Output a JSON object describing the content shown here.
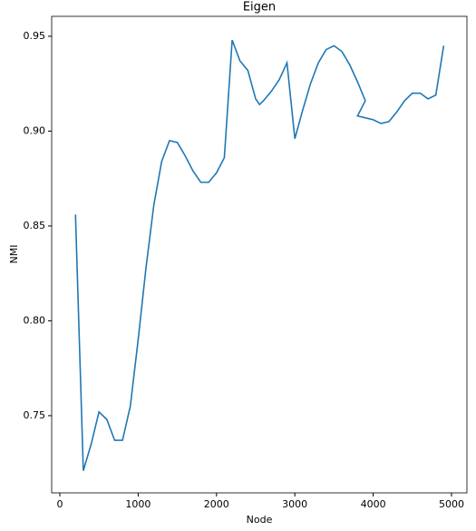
{
  "chart_data": {
    "type": "line",
    "title": "Eigen",
    "x_label": "Node",
    "y_label": "NMI",
    "x": [
      200,
      300,
      400,
      500,
      600,
      700,
      800,
      900,
      1000,
      1100,
      1200,
      1300,
      1400,
      1500,
      1600,
      1700,
      1800,
      1900,
      2000,
      2100,
      2200,
      2300,
      2400,
      2500,
      2550,
      2600,
      2700,
      2800,
      2900,
      3000,
      3100,
      3200,
      3300,
      3400,
      3500,
      3600,
      3700,
      3800,
      3900,
      3800,
      3900,
      4000,
      4100,
      4200,
      4300,
      4400,
      4500,
      4600,
      4700,
      4800,
      4900
    ],
    "series": [
      {
        "name": "NMI",
        "color": "#1f77b4",
        "values": [
          0.856,
          0.721,
          0.735,
          0.752,
          0.748,
          0.737,
          0.737,
          0.755,
          0.79,
          0.828,
          0.861,
          0.884,
          0.895,
          0.894,
          0.887,
          0.879,
          0.873,
          0.873,
          0.878,
          0.886,
          0.948,
          0.937,
          0.932,
          0.917,
          0.914,
          0.916,
          0.921,
          0.927,
          0.936,
          0.896,
          0.911,
          0.925,
          0.936,
          0.943,
          0.945,
          0.942,
          0.935,
          0.926,
          0.916,
          0.908,
          0.907,
          0.906,
          0.904,
          0.905,
          0.91,
          0.916,
          0.92,
          0.92,
          0.917,
          0.919,
          0.945
        ]
      }
    ],
    "xlim": [
      -104,
      5197
    ],
    "ylim": [
      0.7093,
      0.9605
    ],
    "xticks": [
      0,
      1000,
      2000,
      3000,
      4000,
      5000
    ],
    "yticks": [
      0.75,
      {
        "value": 0.8,
        "label": "0.80"
      },
      0.85,
      {
        "value": 0.9,
        "label": "0.90"
      },
      0.95
    ]
  }
}
